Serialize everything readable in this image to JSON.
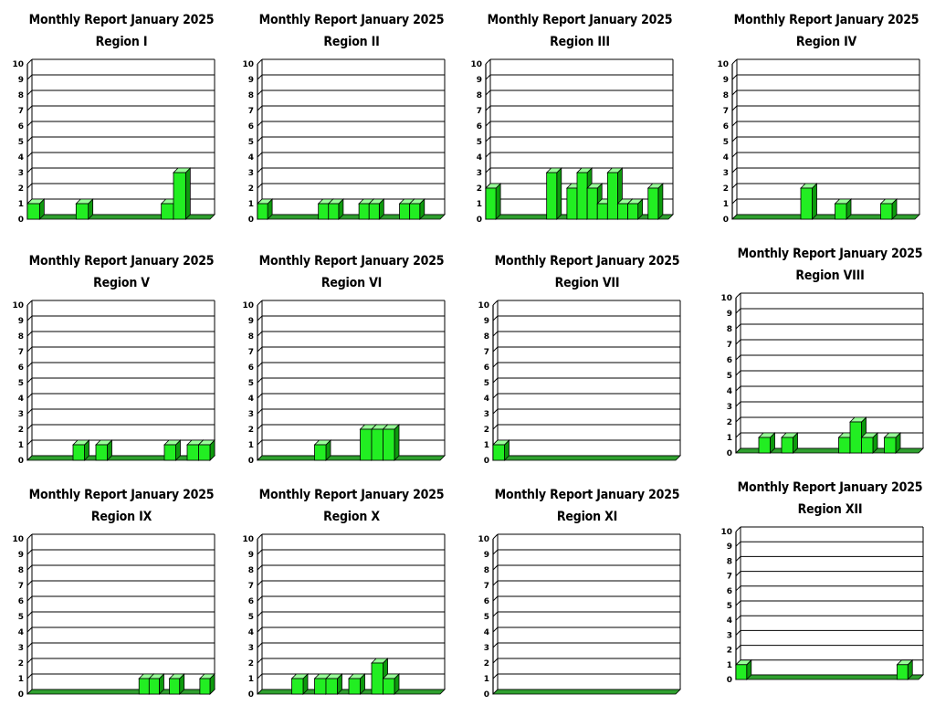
{
  "colors": {
    "bar_front": "#22ee22",
    "bar_top": "#99ff99",
    "bar_side": "#0d9a0d",
    "grid": "#000000",
    "floor": "#2fa02f"
  },
  "chart_data": [
    {
      "type": "bar",
      "title": "Monthly Report  January 2025",
      "subtitle": "Region I",
      "ylim": [
        0,
        10
      ],
      "yticks": [
        0,
        1,
        2,
        3,
        4,
        5,
        6,
        7,
        8,
        9,
        10
      ],
      "grid": true,
      "values": [
        1,
        0,
        0,
        0,
        1,
        0,
        0,
        0,
        0,
        0,
        0,
        1,
        3,
        0,
        0
      ]
    },
    {
      "type": "bar",
      "title": "Monthly Report  January 2025",
      "subtitle": "Region II",
      "ylim": [
        0,
        10
      ],
      "yticks": [
        0,
        1,
        2,
        3,
        4,
        5,
        6,
        7,
        8,
        9,
        10
      ],
      "grid": true,
      "values": [
        1,
        0,
        0,
        0,
        0,
        0,
        1,
        1,
        0,
        0,
        1,
        1,
        0,
        0,
        1,
        1,
        0,
        0
      ]
    },
    {
      "type": "bar",
      "title": "Monthly Report  January 2025",
      "subtitle": "Region III",
      "ylim": [
        0,
        10
      ],
      "yticks": [
        0,
        1,
        2,
        3,
        4,
        5,
        6,
        7,
        8,
        9,
        10
      ],
      "grid": true,
      "values": [
        2,
        0,
        0,
        0,
        0,
        0,
        3,
        0,
        2,
        3,
        2,
        1,
        3,
        1,
        1,
        0,
        2,
        0
      ]
    },
    {
      "type": "bar",
      "title": "Monthly Report  January 2025",
      "subtitle": "Region IV",
      "ylim": [
        0,
        10
      ],
      "yticks": [
        0,
        1,
        2,
        3,
        4,
        5,
        6,
        7,
        8,
        9,
        10
      ],
      "grid": true,
      "values": [
        0,
        0,
        0,
        0,
        0,
        0,
        2,
        0,
        0,
        1,
        0,
        0,
        0,
        1,
        0,
        0
      ]
    },
    {
      "type": "bar",
      "title": "Monthly Report  January 2025",
      "subtitle": "Region V",
      "ylim": [
        0,
        10
      ],
      "yticks": [
        0,
        1,
        2,
        3,
        4,
        5,
        6,
        7,
        8,
        9,
        10
      ],
      "grid": true,
      "values": [
        0,
        0,
        0,
        0,
        1,
        0,
        1,
        0,
        0,
        0,
        0,
        0,
        1,
        0,
        1,
        1
      ]
    },
    {
      "type": "bar",
      "title": "Monthly Report  January 2025",
      "subtitle": "Region VI",
      "ylim": [
        0,
        10
      ],
      "yticks": [
        0,
        1,
        2,
        3,
        4,
        5,
        6,
        7,
        8,
        9,
        10
      ],
      "grid": true,
      "values": [
        0,
        0,
        0,
        0,
        0,
        1,
        0,
        0,
        0,
        2,
        2,
        2,
        0,
        0,
        0,
        0
      ]
    },
    {
      "type": "bar",
      "title": "Monthly Report   January 2025",
      "subtitle": "Region VII",
      "ylim": [
        0,
        10
      ],
      "yticks": [
        0,
        1,
        2,
        3,
        4,
        5,
        6,
        7,
        8,
        9,
        10
      ],
      "grid": true,
      "values": [
        1,
        0,
        0,
        0,
        0,
        0,
        0,
        0,
        0,
        0,
        0,
        0,
        0,
        0,
        0,
        0
      ]
    },
    {
      "type": "bar",
      "title": "Monthly Report   January 2025",
      "subtitle": "Region VIII",
      "ylim": [
        0,
        10
      ],
      "yticks": [
        0,
        1,
        2,
        3,
        4,
        5,
        6,
        7,
        8,
        9,
        10
      ],
      "grid": true,
      "values": [
        0,
        0,
        1,
        0,
        1,
        0,
        0,
        0,
        0,
        1,
        2,
        1,
        0,
        1,
        0,
        0
      ]
    },
    {
      "type": "bar",
      "title": "Monthly Report  January 2025",
      "subtitle": "Region IX",
      "ylim": [
        0,
        10
      ],
      "yticks": [
        0,
        1,
        2,
        3,
        4,
        5,
        6,
        7,
        8,
        9,
        10
      ],
      "grid": true,
      "values": [
        0,
        0,
        0,
        0,
        0,
        0,
        0,
        0,
        0,
        0,
        0,
        1,
        1,
        0,
        1,
        0,
        0,
        1
      ]
    },
    {
      "type": "bar",
      "title": "Monthly Report  January 2025",
      "subtitle": "Region X",
      "ylim": [
        0,
        10
      ],
      "yticks": [
        0,
        1,
        2,
        3,
        4,
        5,
        6,
        7,
        8,
        9,
        10
      ],
      "grid": true,
      "values": [
        0,
        0,
        0,
        1,
        0,
        1,
        1,
        0,
        1,
        0,
        2,
        1,
        0,
        0,
        0,
        0
      ]
    },
    {
      "type": "bar",
      "title": "Monthly Report  January 2025",
      "subtitle": "Region XI",
      "ylim": [
        0,
        10
      ],
      "yticks": [
        0,
        1,
        2,
        3,
        4,
        5,
        6,
        7,
        8,
        9,
        10
      ],
      "grid": true,
      "values": [
        0,
        0,
        0,
        0,
        0,
        0,
        0,
        0,
        0,
        0,
        0,
        0,
        0,
        0,
        0,
        0
      ]
    },
    {
      "type": "bar",
      "title": "Monthly Report  January 2025",
      "subtitle": "Region XII",
      "ylim": [
        0,
        10
      ],
      "yticks": [
        0,
        1,
        2,
        3,
        4,
        5,
        6,
        7,
        8,
        9,
        10
      ],
      "grid": true,
      "values": [
        1,
        0,
        0,
        0,
        0,
        0,
        0,
        0,
        0,
        0,
        0,
        0,
        0,
        0,
        0,
        1,
        0
      ]
    }
  ]
}
